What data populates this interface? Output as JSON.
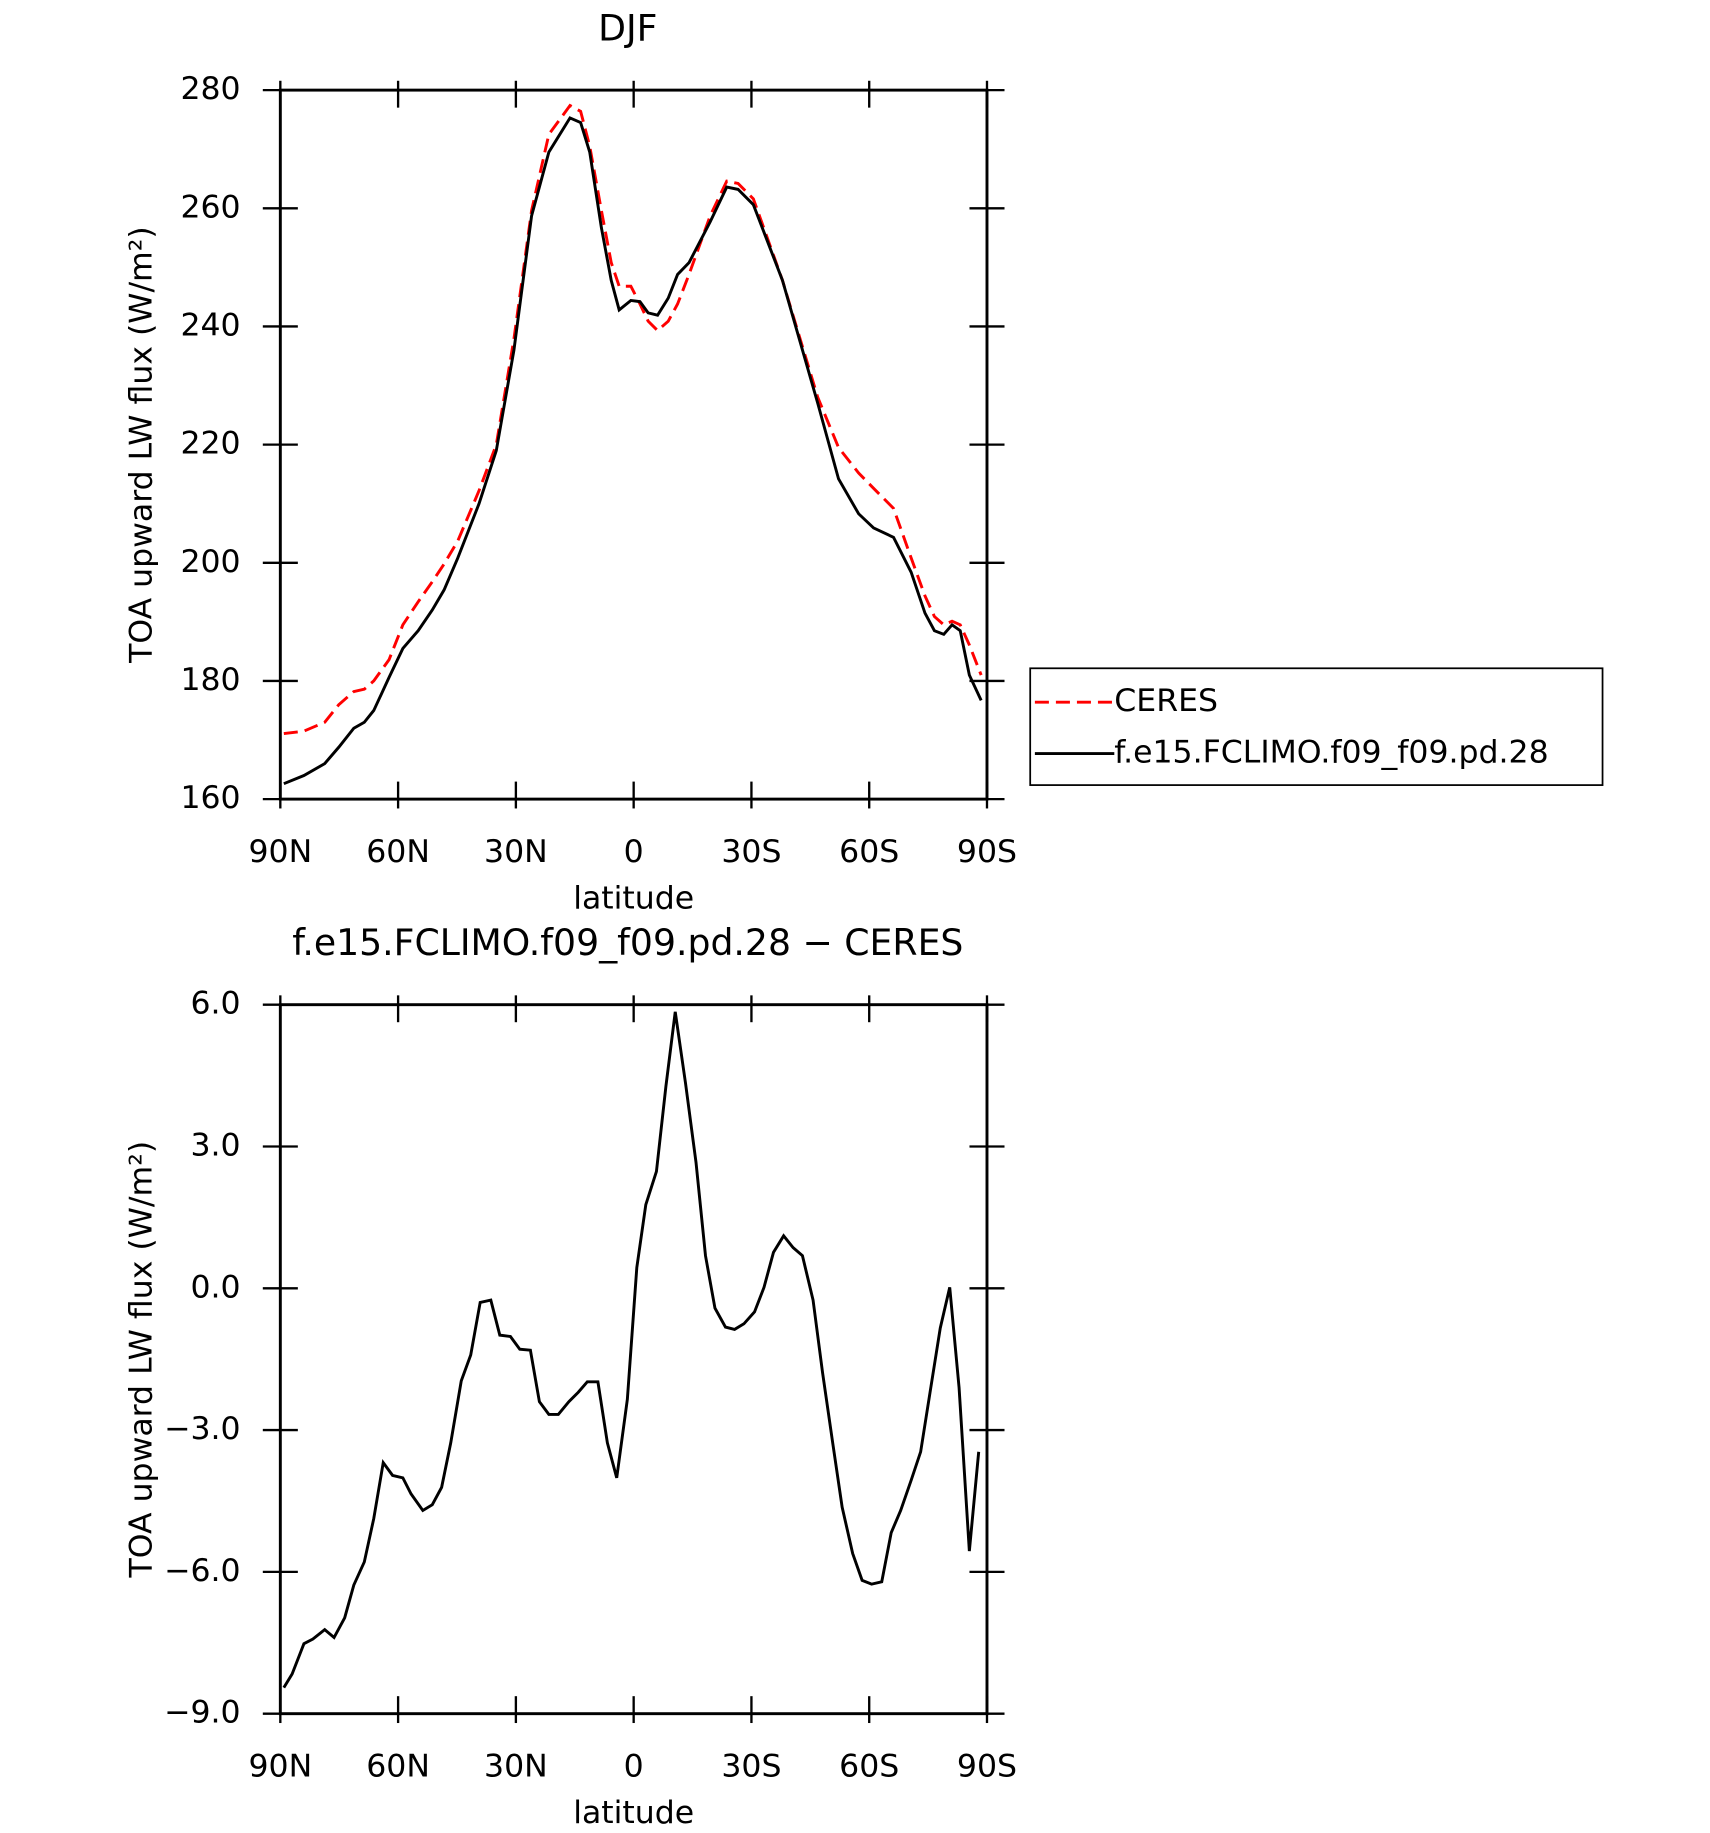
{
  "chart_data": [
    {
      "type": "line",
      "title": "DJF",
      "x_label": "latitude",
      "y_label": "TOA upward LW flux (W/m²)",
      "x": [
        89.1,
        84.0,
        78.7,
        75.1,
        71.3,
        68.6,
        66.2,
        62.3,
        58.8,
        54.9,
        51.3,
        48.3,
        44.8,
        39.4,
        35.0,
        30.5,
        26.0,
        21.6,
        16.2,
        13.5,
        11.2,
        8.2,
        5.7,
        3.7,
        0.7,
        -1.6,
        -3.7,
        -6.1,
        -8.8,
        -11.2,
        -14.1,
        -19.5,
        -23.7,
        -26.6,
        -30.5,
        -37.9,
        -46.9,
        -52.2,
        -57.3,
        -61.1,
        -66.2,
        -70.7,
        -74.2,
        -76.6,
        -79.0,
        -81.1,
        -83.2,
        -85.5,
        -88.5
      ],
      "series": [
        {
          "name": "CERES",
          "color": "#ff0000",
          "dash": true,
          "values": [
            171.1,
            171.5,
            173,
            176,
            178.2,
            178.6,
            180,
            183.6,
            189.5,
            193.4,
            196.8,
            199.8,
            203.7,
            212.2,
            220,
            237.9,
            259.6,
            272.5,
            277.4,
            276.4,
            270.5,
            259.6,
            250.8,
            246.8,
            246.8,
            243.8,
            240.9,
            239.3,
            240.9,
            243.8,
            248.8,
            258.7,
            264.6,
            264.2,
            261.6,
            247.8,
            228,
            219.5,
            215.2,
            212.6,
            209.2,
            200.8,
            194.4,
            190.9,
            189.5,
            190.1,
            189.5,
            186.1,
            181
          ]
        },
        {
          "name": "f.e15.FCLIMO.f09_f09.pd.28",
          "color": "#000000",
          "dash": false,
          "values": [
            162.6,
            164,
            166,
            168.8,
            172,
            173,
            175,
            180.6,
            185.5,
            188.5,
            192,
            195.4,
            200.8,
            210,
            219,
            236,
            258.7,
            269.5,
            275.3,
            274.5,
            269.5,
            256.7,
            247.8,
            242.8,
            244.4,
            244.2,
            242.3,
            241.9,
            244.8,
            248.8,
            250.8,
            257.7,
            263.6,
            263.2,
            260.6,
            247.8,
            227,
            214.2,
            208.3,
            205.9,
            204.3,
            198.4,
            191.5,
            188.5,
            187.9,
            189.5,
            188.5,
            181,
            176.7
          ]
        }
      ],
      "xlim": [
        90,
        -90
      ],
      "xticks": [
        {
          "value": 90,
          "label": "90N"
        },
        {
          "value": 60,
          "label": "60N"
        },
        {
          "value": 30,
          "label": "30N"
        },
        0,
        {
          "value": -30,
          "label": "30S"
        },
        {
          "value": -60,
          "label": "60S"
        },
        {
          "value": -90,
          "label": "90S"
        }
      ],
      "ylim": [
        160,
        280
      ],
      "yticks": [
        160,
        180,
        200,
        220,
        240,
        260,
        280
      ],
      "legend": "right"
    },
    {
      "type": "line",
      "title": "f.e15.FCLIMO.f09_f09.pd.28 − CERES",
      "x_label": "latitude",
      "y_label": "TOA upward LW flux (W/m²)",
      "x": [
        89.1,
        87.0,
        84.0,
        81.7,
        78.7,
        76.3,
        73.6,
        71.3,
        68.6,
        66.2,
        63.8,
        61.4,
        58.8,
        56.7,
        53.7,
        51.3,
        48.9,
        46.6,
        43.9,
        41.5,
        39.1,
        36.4,
        34.1,
        31.4,
        29.0,
        26.3,
        24.0,
        21.6,
        19.2,
        16.5,
        14.1,
        11.8,
        9.1,
        6.7,
        4.3,
        1.6,
        -0.8,
        -3.1,
        -5.8,
        -8.2,
        -10.6,
        -13.2,
        -15.9,
        -18.3,
        -20.7,
        -23.4,
        -25.7,
        -28.1,
        -30.8,
        -33.2,
        -35.6,
        -38.2,
        -40.6,
        -43.0,
        -45.7,
        -48.1,
        -50.7,
        -53.1,
        -55.8,
        -58.2,
        -60.6,
        -63.2,
        -65.6,
        -68.0,
        -70.7,
        -73.1,
        -75.7,
        -78.1,
        -80.5,
        -82.9,
        -85.5,
        -87.9
      ],
      "series": [
        {
          "color": "#000000",
          "dash": false,
          "values": [
            -8.45,
            -8.16,
            -7.52,
            -7.42,
            -7.22,
            -7.39,
            -6.97,
            -6.28,
            -5.79,
            -4.87,
            -3.69,
            -3.96,
            -4.01,
            -4.35,
            -4.7,
            -4.58,
            -4.21,
            -3.27,
            -1.96,
            -1.41,
            -0.3,
            -0.25,
            -0.99,
            -1.02,
            -1.29,
            -1.31,
            -2.4,
            -2.67,
            -2.67,
            -2.4,
            -2.2,
            -1.98,
            -1.98,
            -3.27,
            -4.01,
            -2.35,
            0.44,
            1.77,
            2.47,
            4.27,
            5.85,
            4.34,
            2.66,
            0.69,
            -0.42,
            -0.82,
            -0.87,
            -0.75,
            -0.5,
            0.02,
            0.76,
            1.11,
            0.86,
            0.69,
            -0.25,
            -1.78,
            -3.27,
            -4.63,
            -5.61,
            -6.18,
            -6.26,
            -6.21,
            -5.17,
            -4.7,
            -4.06,
            -3.46,
            -2.1,
            -0.84,
            0.02,
            -2.1,
            -5.56,
            -3.46
          ]
        }
      ],
      "xlim": [
        90,
        -90
      ],
      "xticks": [
        {
          "value": 90,
          "label": "90N"
        },
        {
          "value": 60,
          "label": "60N"
        },
        {
          "value": 30,
          "label": "30N"
        },
        0,
        {
          "value": -30,
          "label": "30S"
        },
        {
          "value": -60,
          "label": "60S"
        },
        {
          "value": -90,
          "label": "90S"
        }
      ],
      "ylim": [
        -9,
        6
      ],
      "yticks": [
        {
          "value": -9,
          "label": "−9.0"
        },
        {
          "value": -6,
          "label": "−6.0"
        },
        {
          "value": -3,
          "label": "−3.0"
        },
        {
          "value": 0,
          "label": "0.0"
        },
        {
          "value": 3,
          "label": "3.0"
        },
        {
          "value": 6,
          "label": "6.0"
        }
      ]
    }
  ]
}
